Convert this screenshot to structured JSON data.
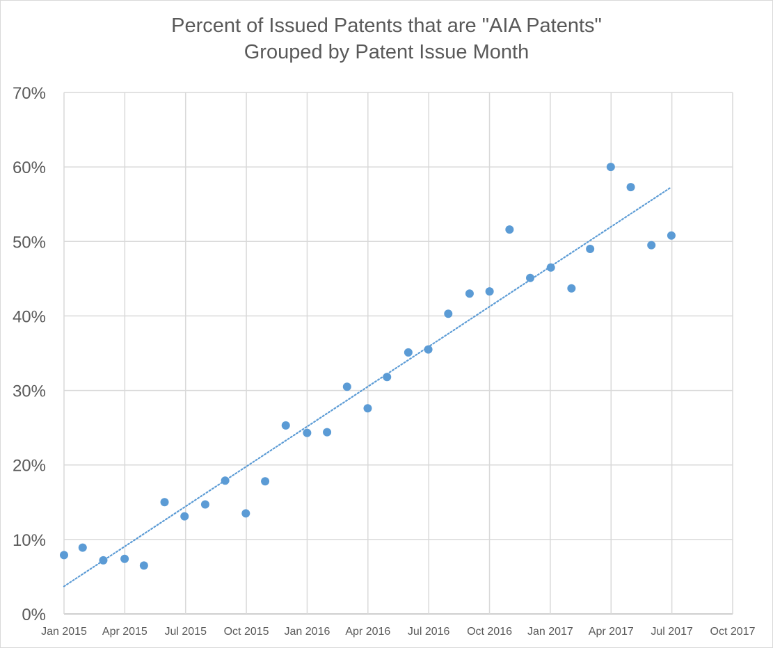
{
  "chart_data": {
    "type": "scatter",
    "title": [
      "Percent of Issued Patents that are \"AIA Patents\"",
      "Grouped by Patent Issue Month"
    ],
    "y_ticks": [
      "0%",
      "10%",
      "20%",
      "30%",
      "40%",
      "50%",
      "60%",
      "70%"
    ],
    "x_ticks": [
      "Jan 2015",
      "Apr 2015",
      "Jul 2015",
      "Oct 2015",
      "Jan 2016",
      "Apr 2016",
      "Jul 2016",
      "Oct 2016",
      "Jan 2017",
      "Apr 2017",
      "Jul 2017",
      "Oct 2017"
    ],
    "xlim": [
      "2015-01-01",
      "2017-10-01"
    ],
    "ylim": [
      0,
      70
    ],
    "grid": true,
    "marker_color": "#5b9bd5",
    "trendline": {
      "style": "dotted",
      "color": "#5b9bd5",
      "from": [
        "2015-01-01",
        3.7
      ],
      "to": [
        "2017-07-01",
        57.3
      ]
    },
    "points": [
      {
        "x": "2015-01-01",
        "y": 7.9
      },
      {
        "x": "2015-01-29",
        "y": 8.9
      },
      {
        "x": "2015-03-01",
        "y": 7.2
      },
      {
        "x": "2015-04-02",
        "y": 7.4
      },
      {
        "x": "2015-05-01",
        "y": 6.5
      },
      {
        "x": "2015-06-01",
        "y": 15.0
      },
      {
        "x": "2015-07-01",
        "y": 13.1
      },
      {
        "x": "2015-08-01",
        "y": 14.7
      },
      {
        "x": "2015-08-31",
        "y": 17.9
      },
      {
        "x": "2015-10-01",
        "y": 13.5
      },
      {
        "x": "2015-10-30",
        "y": 17.8
      },
      {
        "x": "2015-11-30",
        "y": 25.3
      },
      {
        "x": "2016-01-01",
        "y": 24.3
      },
      {
        "x": "2016-01-31",
        "y": 24.4
      },
      {
        "x": "2016-03-01",
        "y": 30.5
      },
      {
        "x": "2016-04-01",
        "y": 27.6
      },
      {
        "x": "2016-04-30",
        "y": 31.8
      },
      {
        "x": "2016-06-01",
        "y": 35.1
      },
      {
        "x": "2016-07-01",
        "y": 35.5
      },
      {
        "x": "2016-07-31",
        "y": 40.3
      },
      {
        "x": "2016-09-01",
        "y": 43.0
      },
      {
        "x": "2016-10-01",
        "y": 43.3
      },
      {
        "x": "2016-10-31",
        "y": 51.6
      },
      {
        "x": "2016-12-01",
        "y": 45.1
      },
      {
        "x": "2017-01-01",
        "y": 46.5
      },
      {
        "x": "2017-02-01",
        "y": 43.7
      },
      {
        "x": "2017-03-01",
        "y": 49.0
      },
      {
        "x": "2017-04-01",
        "y": 60.0
      },
      {
        "x": "2017-05-01",
        "y": 57.3
      },
      {
        "x": "2017-06-01",
        "y": 49.5
      },
      {
        "x": "2017-07-01",
        "y": 50.8
      }
    ]
  }
}
